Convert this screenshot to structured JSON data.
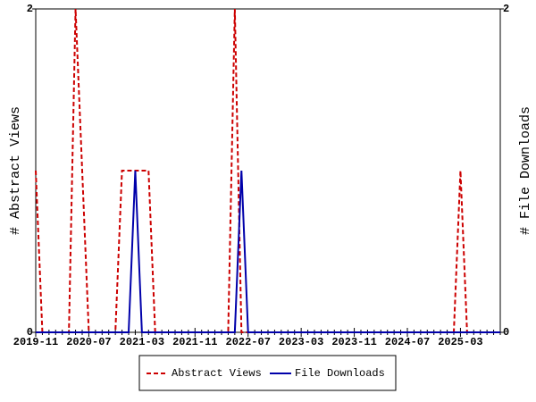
{
  "chart_data": {
    "type": "line",
    "y_label": "# Abstract Views",
    "y2_label": "# File Downloads",
    "categories": [
      "2019-11",
      null,
      null,
      null,
      null,
      null,
      null,
      null,
      "2020-07",
      null,
      null,
      null,
      null,
      null,
      null,
      null,
      "2021-03",
      null,
      null,
      null,
      null,
      null,
      null,
      null,
      "2021-11",
      null,
      null,
      null,
      null,
      null,
      null,
      null,
      "2022-07",
      null,
      null,
      null,
      null,
      null,
      null,
      null,
      "2023-03",
      null,
      null,
      null,
      null,
      null,
      null,
      null,
      "2023-11",
      null,
      null,
      null,
      null,
      null,
      null,
      null,
      "2024-07",
      null,
      null,
      null,
      null,
      null,
      null,
      null,
      "2025-03",
      null,
      null,
      null,
      null,
      null,
      null
    ],
    "series": [
      {
        "name": "Abstract Views",
        "color": "#cc0000",
        "dash": true,
        "values": [
          1,
          0,
          0,
          0,
          0,
          0,
          2,
          1,
          0,
          0,
          0,
          0,
          0,
          1,
          1,
          1,
          1,
          1,
          0,
          0,
          0,
          0,
          0,
          0,
          0,
          0,
          0,
          0,
          0,
          0,
          2,
          0,
          0,
          0,
          0,
          0,
          0,
          0,
          0,
          0,
          0,
          0,
          0,
          0,
          0,
          0,
          0,
          0,
          0,
          0,
          0,
          0,
          0,
          0,
          0,
          0,
          0,
          0,
          0,
          0,
          0,
          0,
          0,
          0,
          1,
          0,
          0,
          0,
          0,
          0,
          0
        ]
      },
      {
        "name": "File Downloads",
        "color": "#0000aa",
        "dash": false,
        "axis": "y2",
        "values": [
          0,
          0,
          0,
          0,
          0,
          0,
          0,
          0,
          0,
          0,
          0,
          0,
          0,
          0,
          0,
          1,
          0,
          0,
          0,
          0,
          0,
          0,
          0,
          0,
          0,
          0,
          0,
          0,
          0,
          0,
          0,
          1,
          0,
          0,
          0,
          0,
          0,
          0,
          0,
          0,
          0,
          0,
          0,
          0,
          0,
          0,
          0,
          0,
          0,
          0,
          0,
          0,
          0,
          0,
          0,
          0,
          0,
          0,
          0,
          0,
          0,
          0,
          0,
          0,
          0,
          0,
          0,
          0,
          0,
          0,
          0
        ]
      }
    ],
    "ylim": [
      0,
      2
    ],
    "yticks": [
      0,
      2
    ],
    "y2lim": [
      0,
      2
    ],
    "y2ticks": [
      0,
      2
    ],
    "legend": "bottom"
  }
}
